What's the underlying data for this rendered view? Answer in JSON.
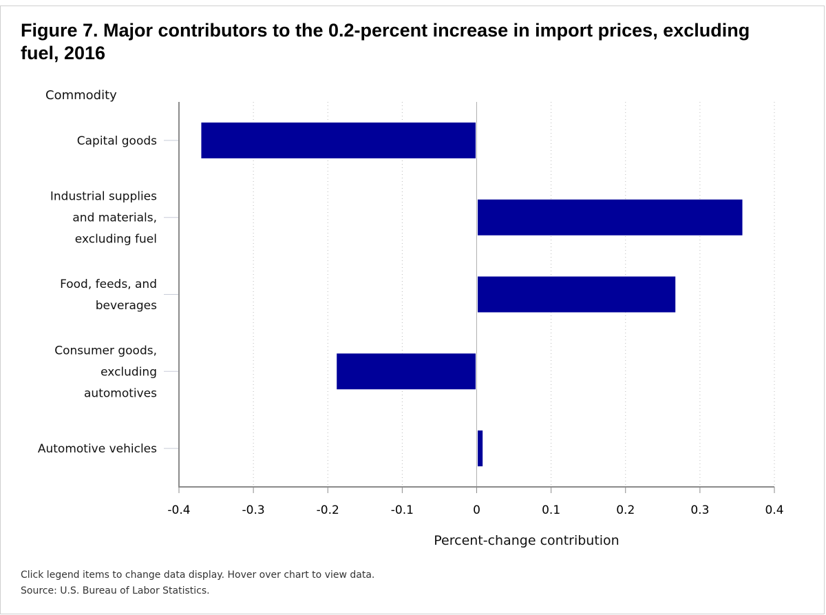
{
  "figure": {
    "title": "Figure 7. Major contributors to the 0.2-percent increase in import prices, excluding fuel, 2016",
    "notes": {
      "instruction": "Click legend items to change data display. Hover over chart to view data.",
      "source": "Source: U.S. Bureau of Labor Statistics."
    }
  },
  "chart_data": {
    "type": "bar",
    "orientation": "horizontal",
    "title": "Figure 7. Major contributors to the 0.2-percent increase in import prices, excluding fuel, 2016",
    "category_axis_title": "Commodity",
    "xlabel": "Percent-change contribution",
    "categories": [
      [
        "Capital goods"
      ],
      [
        "Industrial supplies",
        "and materials,",
        "excluding fuel"
      ],
      [
        "Food, feeds, and",
        "beverages"
      ],
      [
        "Consumer goods,",
        "excluding",
        "automotives"
      ],
      [
        "Automotive vehicles"
      ]
    ],
    "values": [
      -0.37,
      0.357,
      0.267,
      -0.188,
      0.008
    ],
    "xlim": [
      -0.4,
      0.4
    ],
    "xticks": [
      -0.4,
      -0.3,
      -0.2,
      -0.1,
      0,
      0.1,
      0.2,
      0.3,
      0.4
    ],
    "xtick_labels": [
      "-0.4",
      "-0.3",
      "-0.2",
      "-0.1",
      "0",
      "0.1",
      "0.2",
      "0.3",
      "0.4"
    ],
    "grid": "vertical-dotted",
    "bar_color": "#000099",
    "legend": "none"
  }
}
